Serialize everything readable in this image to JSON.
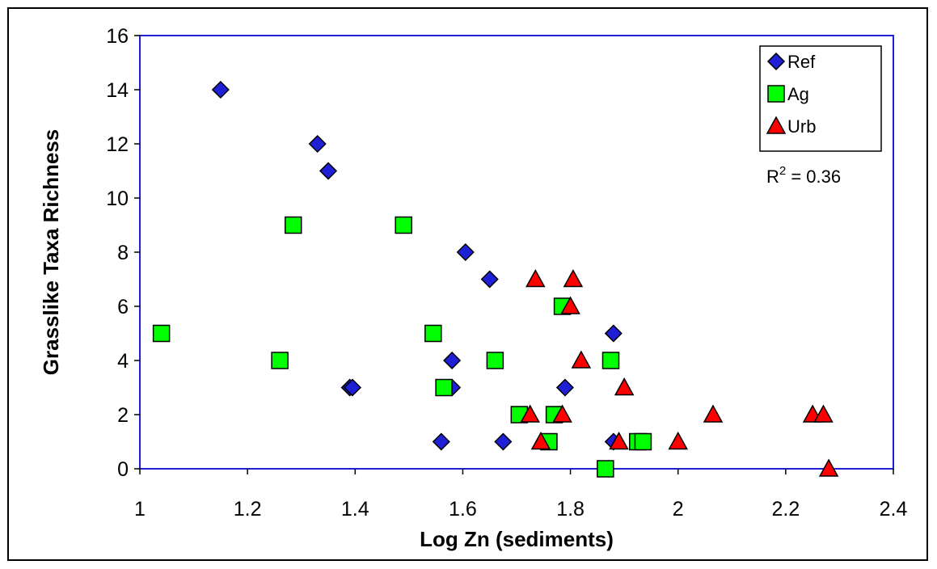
{
  "chart_data": {
    "type": "scatter",
    "title": "",
    "xlabel": "Log Zn (sediments)",
    "ylabel": "Grasslike Taxa Richness",
    "xlim": [
      1,
      2.4
    ],
    "ylim": [
      0,
      16
    ],
    "xticks": [
      1,
      1.2,
      1.4,
      1.6,
      1.8,
      2,
      2.2,
      2.4
    ],
    "xtick_labels": [
      "1",
      "1.2",
      "1.4",
      "1.6",
      "1.8",
      "2",
      "2.2",
      "2.4"
    ],
    "yticks": [
      0,
      2,
      4,
      6,
      8,
      10,
      12,
      14,
      16
    ],
    "ytick_labels": [
      "0",
      "2",
      "4",
      "6",
      "8",
      "10",
      "12",
      "14",
      "16"
    ],
    "grid": false,
    "legend_position": "top-right",
    "annotation": {
      "base": "R",
      "sup": "2",
      "rest": " = 0.36"
    },
    "series": [
      {
        "name": "Ref",
        "marker": "diamond",
        "color": "#1f1fd6",
        "points": [
          [
            1.15,
            14
          ],
          [
            1.33,
            12
          ],
          [
            1.35,
            11
          ],
          [
            1.39,
            3
          ],
          [
            1.395,
            3
          ],
          [
            1.56,
            1
          ],
          [
            1.58,
            3
          ],
          [
            1.58,
            4
          ],
          [
            1.605,
            8
          ],
          [
            1.65,
            7
          ],
          [
            1.675,
            1
          ],
          [
            1.79,
            3
          ],
          [
            1.88,
            5
          ],
          [
            1.88,
            1
          ]
        ]
      },
      {
        "name": "Ag",
        "marker": "square",
        "color": "#00ff00",
        "points": [
          [
            1.04,
            5
          ],
          [
            1.26,
            4
          ],
          [
            1.285,
            9
          ],
          [
            1.49,
            9
          ],
          [
            1.545,
            5
          ],
          [
            1.565,
            3
          ],
          [
            1.66,
            4
          ],
          [
            1.705,
            2
          ],
          [
            1.76,
            1
          ],
          [
            1.77,
            2
          ],
          [
            1.785,
            6
          ],
          [
            1.865,
            0
          ],
          [
            1.875,
            4
          ],
          [
            1.925,
            1
          ],
          [
            1.935,
            1
          ]
        ]
      },
      {
        "name": "Urb",
        "marker": "triangle",
        "color": "#ff0000",
        "points": [
          [
            1.725,
            2
          ],
          [
            1.735,
            7
          ],
          [
            1.745,
            1
          ],
          [
            1.785,
            2
          ],
          [
            1.8,
            6
          ],
          [
            1.805,
            7
          ],
          [
            1.82,
            4
          ],
          [
            1.89,
            1
          ],
          [
            1.9,
            3
          ],
          [
            2.0,
            1
          ],
          [
            2.065,
            2
          ],
          [
            2.25,
            2
          ],
          [
            2.27,
            2
          ],
          [
            2.28,
            0
          ]
        ]
      }
    ]
  }
}
